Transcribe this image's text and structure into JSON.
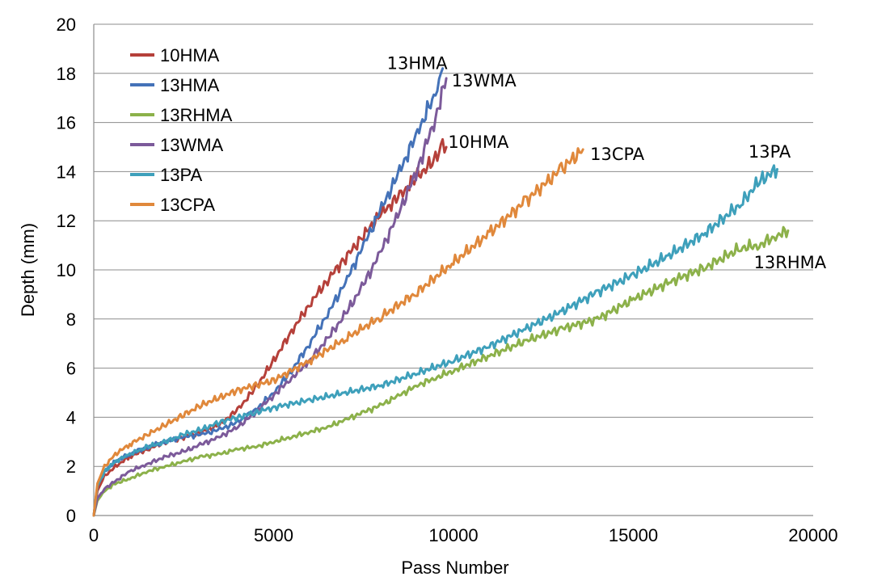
{
  "chart_data": {
    "type": "line",
    "title": "",
    "xlabel": "Pass Number",
    "ylabel": "Depth (mm)",
    "xlim": [
      0,
      20000
    ],
    "ylim": [
      0,
      20
    ],
    "x_ticks": [
      "0",
      "5000",
      "10000",
      "15000",
      "20000"
    ],
    "y_ticks": [
      "0",
      "2",
      "4",
      "6",
      "8",
      "10",
      "12",
      "14",
      "16",
      "18",
      "20"
    ],
    "grid": "horizontal",
    "legend_position": "top-left",
    "series": [
      {
        "name": "10HMA",
        "color": "#b5403a",
        "x": [
          0,
          100,
          300,
          600,
          1000,
          1500,
          2000,
          2500,
          3000,
          3500,
          4000,
          4500,
          5000,
          5500,
          6000,
          6500,
          7000,
          7500,
          8000,
          8500,
          9000,
          9500,
          9700,
          9800
        ],
        "y": [
          0,
          1.0,
          1.6,
          2.0,
          2.4,
          2.7,
          3.0,
          3.2,
          3.4,
          3.7,
          4.3,
          5.2,
          6.3,
          7.5,
          8.6,
          9.6,
          10.5,
          11.4,
          12.3,
          13.0,
          13.8,
          14.5,
          15.2,
          15.0
        ]
      },
      {
        "name": "13HMA",
        "color": "#4472b8",
        "x": [
          0,
          100,
          300,
          600,
          1000,
          1500,
          2000,
          2500,
          3000,
          3500,
          4000,
          4500,
          5000,
          5500,
          6000,
          6500,
          7000,
          7500,
          8000,
          8500,
          9000,
          9500,
          9700
        ],
        "y": [
          0,
          1.2,
          1.8,
          2.2,
          2.5,
          2.8,
          3.0,
          3.2,
          3.3,
          3.5,
          3.8,
          4.3,
          5.0,
          5.9,
          7.0,
          8.2,
          9.5,
          11.0,
          12.5,
          14.0,
          15.6,
          17.2,
          18.2
        ]
      },
      {
        "name": "13RHMA",
        "color": "#8cb14a",
        "x": [
          0,
          100,
          300,
          600,
          1000,
          1500,
          2000,
          2500,
          3000,
          3500,
          4000,
          4500,
          5000,
          5500,
          6000,
          6500,
          7000,
          7500,
          8000,
          8500,
          9000,
          9500,
          10000,
          11000,
          12000,
          13000,
          14000,
          15000,
          16000,
          17000,
          18000,
          18500,
          19000,
          19300
        ],
        "y": [
          0,
          0.6,
          1.0,
          1.3,
          1.5,
          1.8,
          2.0,
          2.2,
          2.4,
          2.5,
          2.7,
          2.8,
          3.0,
          3.2,
          3.4,
          3.6,
          3.9,
          4.2,
          4.5,
          4.9,
          5.3,
          5.6,
          5.9,
          6.5,
          7.1,
          7.6,
          8.0,
          8.8,
          9.5,
          10.1,
          10.9,
          11.0,
          11.4,
          11.6
        ]
      },
      {
        "name": "13WMA",
        "color": "#7c5a9a",
        "x": [
          0,
          100,
          300,
          600,
          1000,
          1500,
          2000,
          2500,
          3000,
          3500,
          4000,
          4500,
          5000,
          5500,
          6000,
          6500,
          7000,
          7500,
          8000,
          8500,
          9000,
          9500,
          9800
        ],
        "y": [
          0,
          0.7,
          1.1,
          1.4,
          1.8,
          2.1,
          2.4,
          2.6,
          2.9,
          3.2,
          3.6,
          4.2,
          4.9,
          5.6,
          6.3,
          7.2,
          8.2,
          9.4,
          10.8,
          12.4,
          14.1,
          16.2,
          17.8
        ]
      },
      {
        "name": "13PA",
        "color": "#3ea0bb",
        "x": [
          0,
          100,
          300,
          600,
          1000,
          1500,
          2000,
          2500,
          3000,
          3500,
          4000,
          4500,
          5000,
          6000,
          7000,
          8000,
          9000,
          10000,
          11000,
          12000,
          13000,
          14000,
          15000,
          16000,
          17000,
          18000,
          18500,
          19000
        ],
        "y": [
          0,
          1.2,
          1.8,
          2.2,
          2.5,
          2.8,
          3.0,
          3.3,
          3.5,
          3.8,
          4.0,
          4.2,
          4.4,
          4.7,
          5.0,
          5.3,
          5.8,
          6.3,
          6.9,
          7.6,
          8.3,
          9.1,
          9.8,
          10.6,
          11.5,
          12.7,
          13.6,
          14.1
        ]
      },
      {
        "name": "13CPA",
        "color": "#e0883b",
        "x": [
          0,
          100,
          300,
          600,
          1000,
          1500,
          2000,
          2500,
          3000,
          3500,
          4000,
          4500,
          5000,
          6000,
          7000,
          8000,
          9000,
          10000,
          11000,
          12000,
          13000,
          13600
        ],
        "y": [
          0,
          1.3,
          2.0,
          2.5,
          2.9,
          3.3,
          3.7,
          4.1,
          4.5,
          4.8,
          5.1,
          5.3,
          5.5,
          6.3,
          7.2,
          8.1,
          9.1,
          10.3,
          11.5,
          12.8,
          14.1,
          14.9
        ]
      }
    ],
    "annotations": [
      {
        "text": "13HMA",
        "x": 8150,
        "y": 18.4
      },
      {
        "text": "13WMA",
        "x": 9950,
        "y": 17.7
      },
      {
        "text": "10HMA",
        "x": 9850,
        "y": 15.2
      },
      {
        "text": "13CPA",
        "x": 13800,
        "y": 14.7
      },
      {
        "text": "13PA",
        "x": 18200,
        "y": 14.8
      },
      {
        "text": "13RHMA",
        "x": 18350,
        "y": 10.3
      }
    ]
  }
}
